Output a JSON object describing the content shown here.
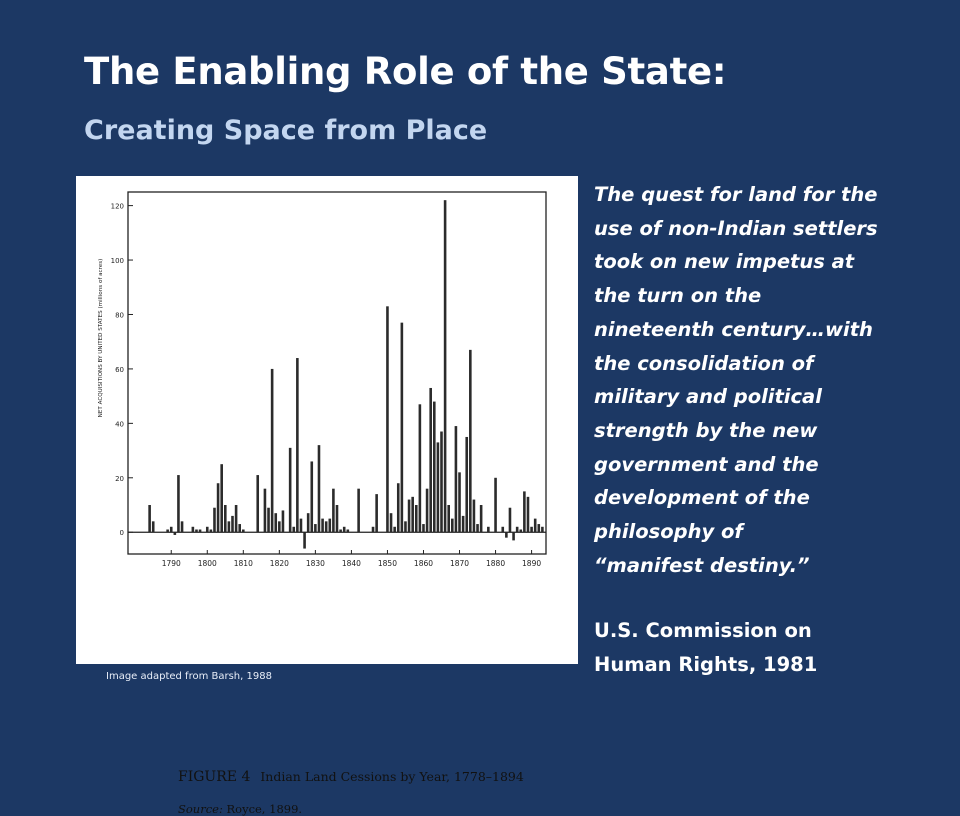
{
  "slide": {
    "title": "The Enabling Role of the State:",
    "subtitle": "Creating Space from Place",
    "quote_lines": [
      "The quest for land for the",
      "use of non-Indian settlers",
      "took on new impetus at",
      "the turn on the",
      "nineteenth century…with",
      "the consolidation of",
      "military and political",
      "strength by the new",
      "government and the",
      "development of the",
      "philosophy of",
      "“manifest destiny.”"
    ],
    "attribution_lines": [
      "U.S. Commission on",
      "Human Rights, 1981"
    ],
    "image_credit": "Image adapted from Barsh, 1988",
    "colors": {
      "background": "#1c3864",
      "title": "#ffffff",
      "subtitle": "#c3d6f0",
      "figure_bg": "#ffffff",
      "bars": "#2b2b2b"
    }
  },
  "figure": {
    "caption_label": "FIGURE 4",
    "caption_text": "Indian Land Cessions by Year, 1778–1894",
    "source_label": "Source:",
    "source_text": "Royce, 1899."
  },
  "chart_data": {
    "type": "bar",
    "title": "",
    "xlabel": "",
    "ylabel": "NET ACQUISITIONS BY UNITED STATES (millions of acres)",
    "xlim": [
      1778,
      1894
    ],
    "ylim": [
      -8,
      125
    ],
    "yticks": [
      0,
      20,
      40,
      60,
      80,
      100,
      120
    ],
    "xticks": [
      1790,
      1800,
      1810,
      1820,
      1830,
      1840,
      1850,
      1860,
      1870,
      1880,
      1890
    ],
    "grid": false,
    "x": [
      1784,
      1785,
      1789,
      1790,
      1791,
      1792,
      1793,
      1796,
      1797,
      1798,
      1800,
      1801,
      1802,
      1803,
      1804,
      1805,
      1806,
      1807,
      1808,
      1809,
      1810,
      1814,
      1816,
      1817,
      1818,
      1819,
      1820,
      1821,
      1823,
      1824,
      1825,
      1826,
      1827,
      1828,
      1829,
      1830,
      1831,
      1832,
      1833,
      1834,
      1835,
      1836,
      1837,
      1838,
      1839,
      1842,
      1846,
      1847,
      1850,
      1851,
      1852,
      1853,
      1854,
      1855,
      1856,
      1857,
      1858,
      1859,
      1860,
      1861,
      1862,
      1863,
      1864,
      1865,
      1866,
      1867,
      1868,
      1869,
      1870,
      1871,
      1872,
      1873,
      1874,
      1875,
      1876,
      1878,
      1880,
      1882,
      1883,
      1884,
      1885,
      1886,
      1887,
      1888,
      1889,
      1890,
      1891,
      1892,
      1893
    ],
    "values": [
      10,
      4,
      1,
      2,
      -1,
      21,
      4,
      2,
      1,
      1,
      2,
      1,
      9,
      18,
      25,
      10,
      4,
      6,
      10,
      3,
      1,
      21,
      16,
      9,
      60,
      7,
      4,
      8,
      31,
      2,
      64,
      5,
      -6,
      7,
      26,
      3,
      32,
      5,
      4,
      5,
      16,
      10,
      1,
      2,
      1,
      16,
      2,
      14,
      83,
      7,
      2,
      18,
      77,
      4,
      12,
      13,
      10,
      47,
      3,
      16,
      53,
      48,
      33,
      37,
      122,
      10,
      5,
      39,
      22,
      6,
      35,
      67,
      12,
      3,
      10,
      2,
      20,
      2,
      -2,
      9,
      -3,
      2,
      1,
      15,
      13,
      2,
      5,
      3,
      2
    ]
  }
}
